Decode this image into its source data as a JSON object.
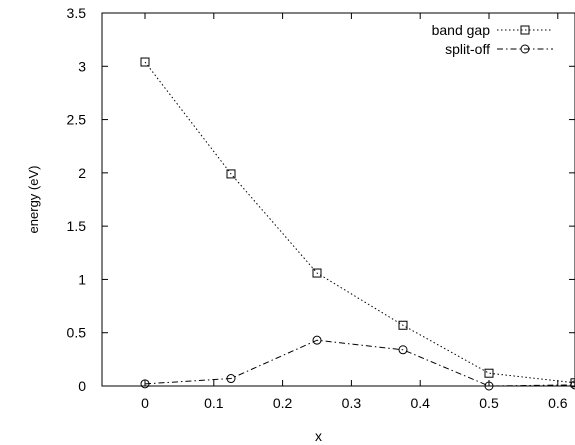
{
  "chart_data": {
    "type": "line",
    "title": "",
    "xlabel": "x",
    "ylabel": "energy (eV)",
    "xlim": [
      -0.0625,
      0.625
    ],
    "ylim": [
      0,
      3.5
    ],
    "x_ticks": [
      "0",
      "0.1",
      "0.2",
      "0.3",
      "0.4",
      "0.5",
      "0.6"
    ],
    "y_ticks": [
      "0",
      "0.5",
      "1",
      "1.5",
      "2",
      "2.5",
      "3",
      "3.5"
    ],
    "grid": false,
    "legend_position": "top-right",
    "series": [
      {
        "name": "band gap",
        "marker": "square",
        "line_style": "dotted",
        "x": [
          0,
          0.125,
          0.25,
          0.375,
          0.5,
          0.625
        ],
        "y": [
          3.04,
          1.99,
          1.06,
          0.57,
          0.12,
          0.03
        ]
      },
      {
        "name": "split-off",
        "marker": "circle",
        "line_style": "dash-dot",
        "x": [
          0,
          0.125,
          0.25,
          0.375,
          0.5,
          0.625
        ],
        "y": [
          0.02,
          0.07,
          0.43,
          0.34,
          0.0,
          0.01
        ]
      }
    ]
  }
}
